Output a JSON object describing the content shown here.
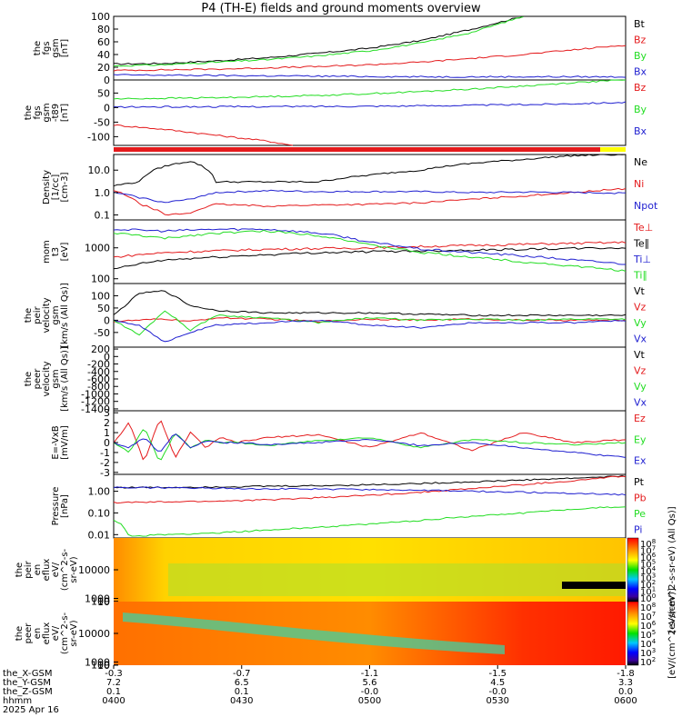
{
  "title": "P4 (TH-E) fields and ground moments overview",
  "colors": {
    "black": "#000000",
    "red": "#e41a1c",
    "green": "#22dd22",
    "blue": "#1f1fd0",
    "yellow": "#ffff00"
  },
  "chart_data": [
    {
      "type": "line",
      "id": "fgs",
      "ylabel": [
        "the",
        "fgs",
        "gsm",
        "[nT]"
      ],
      "ylim": [
        0,
        100
      ],
      "yticks": [
        "0",
        "20",
        "40",
        "60",
        "80",
        "100"
      ],
      "legend": [
        "Bt",
        "Bz",
        "By",
        "Bx"
      ],
      "series": [
        {
          "name": "Bt",
          "color": "black",
          "x": [
            0,
            10,
            20,
            30,
            40,
            50,
            60,
            70,
            75,
            80
          ],
          "y": [
            25,
            26,
            30,
            35,
            42,
            50,
            62,
            80,
            90,
            100
          ]
        },
        {
          "name": "Bz",
          "color": "red",
          "x": [
            0,
            10,
            20,
            30,
            40,
            50,
            60,
            70,
            80,
            100
          ],
          "y": [
            15,
            16,
            17,
            19,
            21,
            24,
            28,
            34,
            40,
            55
          ]
        },
        {
          "name": "By",
          "color": "green",
          "x": [
            0,
            10,
            20,
            30,
            40,
            50,
            60,
            70,
            80
          ],
          "y": [
            22,
            24,
            28,
            32,
            38,
            46,
            58,
            75,
            100
          ]
        },
        {
          "name": "Bx",
          "color": "blue",
          "x": [
            0,
            20,
            40,
            60,
            80,
            100
          ],
          "y": [
            8,
            7,
            6,
            5,
            5,
            5
          ]
        }
      ]
    },
    {
      "type": "line",
      "id": "fgs-dipole",
      "ylabel": [
        "the",
        "fgs",
        "gsm",
        "-t89",
        "[nT]"
      ],
      "ylim": [
        -130,
        95
      ],
      "yticks": [
        "-100",
        "-50",
        "0",
        "50"
      ],
      "legend": [
        "Bz",
        "By",
        "Bx"
      ],
      "series": [
        {
          "name": "Bz",
          "color": "red",
          "x": [
            0,
            10,
            20,
            30,
            35
          ],
          "y": [
            -60,
            -75,
            -95,
            -115,
            -130
          ]
        },
        {
          "name": "By",
          "color": "green",
          "x": [
            0,
            10,
            20,
            30,
            40,
            50,
            60,
            70,
            80,
            90,
            100
          ],
          "y": [
            30,
            32,
            34,
            38,
            42,
            48,
            55,
            64,
            74,
            86,
            95
          ]
        },
        {
          "name": "Bx",
          "color": "blue",
          "x": [
            0,
            20,
            40,
            60,
            80,
            100
          ],
          "y": [
            2,
            3,
            4,
            6,
            10,
            18
          ]
        }
      ]
    },
    {
      "type": "line",
      "id": "density",
      "log": true,
      "ylabel": [
        "Density",
        "[1/cc]",
        "[cm-3]"
      ],
      "ylim": [
        0.06,
        50
      ],
      "yticks": [
        "0.1",
        "1.0",
        "10.0"
      ],
      "legend": [
        "Ne",
        "Ni",
        "Npot"
      ],
      "series": [
        {
          "name": "Ne",
          "color": "black",
          "x": [
            0,
            5,
            10,
            15,
            20,
            30,
            40,
            50,
            60,
            70,
            80,
            90,
            100
          ],
          "y": [
            2,
            3,
            15,
            25,
            3,
            3,
            3,
            6,
            10,
            20,
            30,
            45,
            50
          ]
        },
        {
          "name": "Ni",
          "color": "red",
          "x": [
            0,
            5,
            10,
            15,
            20,
            30,
            40,
            50,
            60,
            70,
            80,
            90,
            100
          ],
          "y": [
            1.2,
            0.3,
            0.1,
            0.12,
            0.3,
            0.25,
            0.28,
            0.3,
            0.35,
            0.5,
            0.7,
            1,
            1.5
          ]
        },
        {
          "name": "Npot",
          "color": "blue",
          "x": [
            0,
            5,
            10,
            15,
            20,
            30,
            40,
            50,
            60,
            70,
            80,
            90,
            100
          ],
          "y": [
            1,
            0.6,
            0.35,
            0.5,
            1,
            1.2,
            1.1,
            1.1,
            1.1,
            1,
            1.05,
            1,
            0.95
          ]
        }
      ]
    },
    {
      "type": "line",
      "id": "temperature",
      "log": true,
      "ylabel": [
        "mom",
        "t3",
        "[eV]"
      ],
      "ylim": [
        70,
        8000
      ],
      "yticks": [
        "100",
        "1000"
      ],
      "legend": [
        "Te⊥",
        "Te∥",
        "Ti⊥",
        "Ti∥"
      ],
      "series": [
        {
          "name": "Te⊥",
          "color": "red",
          "x": [
            0,
            10,
            20,
            30,
            40,
            50,
            60,
            70,
            80,
            90,
            100
          ],
          "y": [
            500,
            700,
            800,
            900,
            950,
            1000,
            1100,
            1200,
            1300,
            1400,
            1500
          ]
        },
        {
          "name": "Te∥",
          "color": "black",
          "x": [
            0,
            10,
            20,
            30,
            40,
            50,
            60,
            70,
            80,
            90,
            100
          ],
          "y": [
            200,
            400,
            500,
            600,
            700,
            750,
            800,
            850,
            900,
            950,
            1000
          ]
        },
        {
          "name": "Ti⊥",
          "color": "blue",
          "x": [
            0,
            10,
            20,
            30,
            40,
            50,
            60,
            70,
            80,
            90,
            100
          ],
          "y": [
            4000,
            3500,
            4000,
            4000,
            3000,
            1500,
            900,
            700,
            550,
            400,
            300
          ]
        },
        {
          "name": "Ti∥",
          "color": "green",
          "x": [
            0,
            10,
            20,
            30,
            40,
            50,
            60,
            70,
            80,
            90,
            100
          ],
          "y": [
            3000,
            2000,
            3000,
            3500,
            2500,
            1200,
            700,
            500,
            350,
            250,
            180
          ]
        }
      ]
    },
    {
      "type": "line",
      "id": "peir-velocity",
      "ylabel": [
        "the",
        "peir",
        "velocity",
        "gsm",
        "[km/s (All Qs)]"
      ],
      "ylim": [
        -110,
        150
      ],
      "yticks": [
        "-50",
        "0",
        "50",
        "100"
      ],
      "legend": [
        "Vt",
        "Vz",
        "Vy",
        "Vx"
      ],
      "series": [
        {
          "name": "Vt",
          "color": "black",
          "x": [
            0,
            5,
            10,
            15,
            20,
            30,
            40,
            50,
            60,
            70,
            80,
            90,
            100
          ],
          "y": [
            20,
            110,
            120,
            60,
            40,
            30,
            30,
            30,
            25,
            20,
            20,
            20,
            20
          ]
        },
        {
          "name": "Vz",
          "color": "red",
          "x": [
            0,
            5,
            10,
            15,
            20,
            30,
            40,
            50,
            60,
            70,
            80,
            90,
            100
          ],
          "y": [
            -5,
            0,
            5,
            -5,
            10,
            5,
            -5,
            5,
            0,
            5,
            0,
            0,
            0
          ]
        },
        {
          "name": "Vy",
          "color": "green",
          "x": [
            0,
            5,
            10,
            15,
            20,
            30,
            40,
            50,
            60,
            70,
            80,
            90,
            100
          ],
          "y": [
            0,
            -60,
            40,
            -40,
            20,
            10,
            -10,
            10,
            0,
            5,
            0,
            5,
            5
          ]
        },
        {
          "name": "Vx",
          "color": "blue",
          "x": [
            0,
            5,
            10,
            15,
            20,
            30,
            40,
            50,
            60,
            70,
            80,
            90,
            100
          ],
          "y": [
            0,
            -20,
            -90,
            -50,
            -20,
            -10,
            0,
            -20,
            -30,
            -10,
            -10,
            -10,
            0
          ]
        }
      ]
    },
    {
      "type": "line",
      "id": "peer-velocity",
      "ylabel": [
        "the",
        "peer",
        "velocity",
        "gsm",
        "[km/s (All Qs)]"
      ],
      "ylim": [
        -1450,
        250
      ],
      "yticks": [
        "-1400",
        "-1200",
        "-1000",
        "-800",
        "-600",
        "-400",
        "-200",
        "0",
        "200"
      ],
      "legend": [
        "Vt",
        "Vz",
        "Vy",
        "Vx"
      ],
      "series": []
    },
    {
      "type": "line",
      "id": "efield",
      "ylabel": [
        "E=-VxB",
        "[mV/m]"
      ],
      "ylim": [
        -3.2,
        3.2
      ],
      "yticks": [
        "-3",
        "-2",
        "-1",
        "0",
        "1",
        "2",
        "3"
      ],
      "legend": [
        "Ez",
        "Ey",
        "Ex"
      ],
      "series": [
        {
          "name": "Ez",
          "color": "red",
          "x": [
            0,
            3,
            6,
            9,
            12,
            15,
            18,
            21,
            24,
            30,
            40,
            50,
            60,
            70,
            80,
            90,
            100
          ],
          "y": [
            0,
            2,
            -2,
            2.5,
            -1.5,
            1,
            -0.5,
            0.5,
            0,
            0.5,
            0.8,
            -0.5,
            1,
            -0.8,
            1,
            0,
            0.3
          ]
        },
        {
          "name": "Ey",
          "color": "green",
          "x": [
            0,
            3,
            6,
            9,
            12,
            15,
            18,
            21,
            24,
            30,
            40,
            50,
            60,
            70,
            80,
            90,
            100
          ],
          "y": [
            0,
            -1,
            1.5,
            -2,
            1,
            -0.5,
            0.3,
            0,
            0,
            -0.3,
            0.2,
            0.5,
            -0.5,
            0.3,
            0,
            -0.2,
            0
          ]
        },
        {
          "name": "Ex",
          "color": "blue",
          "x": [
            0,
            3,
            6,
            9,
            12,
            15,
            18,
            21,
            24,
            30,
            40,
            50,
            60,
            70,
            80,
            90,
            100
          ],
          "y": [
            0,
            -0.5,
            0.5,
            -1,
            1,
            -0.5,
            0.2,
            0,
            0,
            -0.2,
            0,
            0.3,
            -0.3,
            0,
            -0.5,
            -1,
            -1.5
          ]
        }
      ]
    },
    {
      "type": "line",
      "id": "pressure",
      "log": true,
      "ylabel": [
        "Pressure",
        "[nPa]"
      ],
      "ylim": [
        0.007,
        6
      ],
      "yticks": [
        "0.01",
        "0.10",
        "1.00"
      ],
      "legend": [
        "Pt",
        "Pb",
        "Pe",
        "Pi"
      ],
      "series": [
        {
          "name": "Pt",
          "color": "black",
          "x": [
            0,
            10,
            20,
            30,
            40,
            50,
            60,
            70,
            80,
            90,
            100
          ],
          "y": [
            1.5,
            1.5,
            1.6,
            1.7,
            1.8,
            2,
            2.3,
            2.7,
            3.3,
            4,
            5
          ]
        },
        {
          "name": "Pb",
          "color": "red",
          "x": [
            0,
            10,
            20,
            30,
            40,
            50,
            60,
            70,
            80,
            90,
            100
          ],
          "y": [
            0.3,
            0.32,
            0.35,
            0.4,
            0.5,
            0.65,
            0.9,
            1.3,
            2,
            3,
            5
          ]
        },
        {
          "name": "Pe",
          "color": "green",
          "x": [
            0,
            3,
            6,
            10,
            20,
            30,
            40,
            50,
            60,
            70,
            80,
            90,
            100
          ],
          "y": [
            0.05,
            0.008,
            0.009,
            0.01,
            0.012,
            0.016,
            0.022,
            0.03,
            0.045,
            0.07,
            0.1,
            0.15,
            0.2
          ]
        },
        {
          "name": "Pi",
          "color": "blue",
          "x": [
            0,
            10,
            20,
            30,
            40,
            50,
            60,
            70,
            80,
            90,
            100
          ],
          "y": [
            1.5,
            1.45,
            1.4,
            1.3,
            1.25,
            1.2,
            1.1,
            1,
            0.9,
            0.8,
            0.7
          ]
        }
      ]
    },
    {
      "type": "heatmap",
      "id": "peir-en-eflux",
      "ylabel": [
        "the",
        "peir",
        "en",
        "eflux",
        "eV/",
        "(cm^2-s-",
        "sr-eV)"
      ],
      "ylim": [
        7,
        20000
      ],
      "yticks": [
        "10",
        "100",
        "1000",
        "10000"
      ]
    },
    {
      "type": "heatmap",
      "id": "peer-en-eflux",
      "ylabel": [
        "the",
        "peer",
        "en",
        "eflux",
        "eV/",
        "(cm^2-s-",
        "sr-eV)"
      ],
      "ylim": [
        7,
        20000
      ],
      "yticks": [
        "10",
        "100",
        "1000",
        "10000"
      ]
    }
  ],
  "colorbar": {
    "label1": "[eV/(cm^2-s-sr-eV) (All Qs)]",
    "ticks1": [
      "10^8",
      "10^7",
      "10^6",
      "10^5",
      "10^4",
      "10^3",
      "10^2",
      "10^1",
      "10^0"
    ],
    "ticks1_sup": [
      "8",
      "7",
      "6",
      "5",
      "4",
      "3",
      "2",
      "1",
      "0"
    ],
    "label2": "[eV/(cm^2-s-sr-eV)]",
    "ticks2": [
      "10^8",
      "10^7",
      "10^6",
      "10^5",
      "10^4",
      "10^3",
      "10^2"
    ],
    "ticks2_sup": [
      "8",
      "7",
      "6",
      "5",
      "4",
      "3",
      "2"
    ]
  },
  "xaxis": {
    "row_labels": [
      "the_X-GSM",
      "the_Y-GSM",
      "the_Z-GSM",
      "hhmm",
      "2025 Apr 16"
    ],
    "columns": [
      [
        "-0.3",
        "7.2",
        "0.1",
        "0400"
      ],
      [
        "-0.7",
        "6.5",
        "0.1",
        "0430"
      ],
      [
        "-1.1",
        "5.6",
        "-0.0",
        "0500"
      ],
      [
        "-1.5",
        "4.5",
        "-0.0",
        "0530"
      ],
      [
        "-1.8",
        "3.3",
        "0.0",
        "0600"
      ]
    ]
  }
}
